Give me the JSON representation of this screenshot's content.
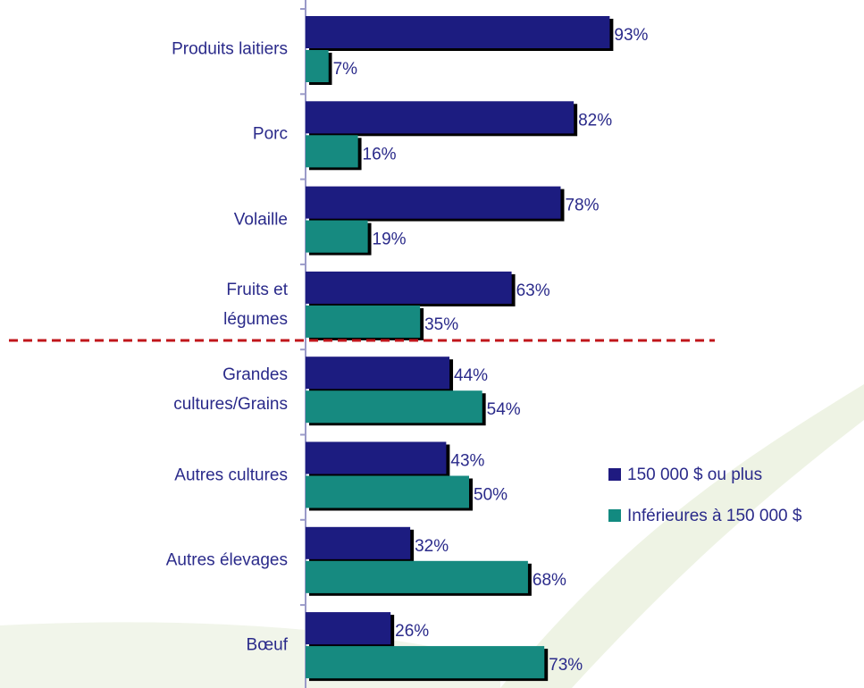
{
  "chart_data": {
    "type": "bar",
    "orientation": "horizontal",
    "categories": [
      "Produits laitiers",
      "Porc",
      "Volaille",
      "Fruits et\nlégumes",
      "Grandes\ncultures/Grains",
      "Autres cultures",
      "Autres élevages",
      "Bœuf"
    ],
    "series": [
      {
        "name": "150 000 $ ou plus",
        "color": "#1f1a80",
        "values": [
          93,
          82,
          78,
          63,
          44,
          43,
          32,
          26
        ],
        "value_labels": [
          "93%",
          "82%",
          "78%",
          "63%",
          "44%",
          "43%",
          "32%",
          "26%"
        ]
      },
      {
        "name": "Inférieures à 150 000 $",
        "color": "#128a80",
        "values": [
          7,
          16,
          19,
          35,
          54,
          50,
          68,
          73
        ],
        "value_labels": [
          "7%",
          "16%",
          "19%",
          "35%",
          "54%",
          "50%",
          "68%",
          "73%"
        ]
      }
    ],
    "xlim": [
      0,
      100
    ],
    "legend": "right"
  }
}
